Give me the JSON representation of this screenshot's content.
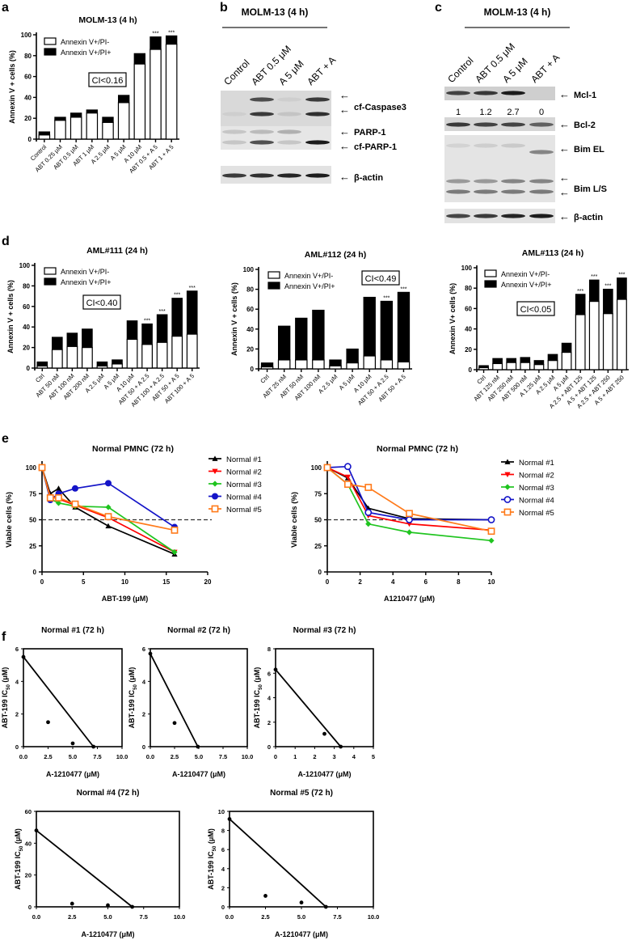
{
  "panel_letters": {
    "a": "a",
    "b": "b",
    "c": "c",
    "d": "d",
    "e": "e",
    "f": "f"
  },
  "blots": {
    "b": {
      "title": "MOLM-13 (4 h)",
      "lanes": [
        "Control",
        "ABT 0.5 μM",
        "A 5 μM",
        "ABT + A"
      ],
      "bands": [
        "cf-Caspase3",
        "PARP-1",
        "cf-PARP-1",
        "β-actin"
      ],
      "arrow": "←"
    },
    "c": {
      "title": "MOLM-13 (4 h)",
      "lanes": [
        "Control",
        "ABT 0.5 μM",
        "A 5 μM",
        "ABT + A"
      ],
      "mcl1_quant": [
        "1",
        "1.2",
        "2.7",
        "0"
      ],
      "bands": [
        "Mcl-1",
        "Bcl-2",
        "Bim EL",
        "Bim L/S",
        "β-actin"
      ],
      "arrow": "←"
    }
  },
  "chart_data": [
    {
      "id": "a",
      "type": "bar",
      "stacked": true,
      "title": "MOLM-13 (4 h)",
      "ylabel": "Annexin V + cells (%)",
      "xlabel": "",
      "annotation": "CI<0.16",
      "legend_position": "top-left",
      "categories": [
        "Control",
        "ABT 0.25 μM",
        "ABT 0.5 μM",
        "ABT 1 μM",
        "A 2.5 μM",
        "A 5 μM",
        "A 10 μM",
        "ABT 0.5 + A 5",
        "ABT 1 + A 5"
      ],
      "series": [
        {
          "name": "Annexin V+/PI-",
          "values": [
            4,
            18,
            21,
            25,
            16,
            35,
            72,
            86,
            91
          ]
        },
        {
          "name": "Annexin V+/PI+",
          "values": [
            3,
            3,
            4,
            3,
            5,
            7,
            10,
            12,
            8
          ]
        }
      ],
      "significance": [
        "",
        "",
        "",
        "",
        "",
        "",
        "",
        "***",
        "***"
      ],
      "ylim": [
        0,
        100
      ],
      "yticks": [
        0,
        20,
        40,
        60,
        80,
        100
      ]
    },
    {
      "id": "d1",
      "type": "bar",
      "stacked": true,
      "title": "AML#111 (24 h)",
      "ylabel": "Annexin V + cells (%)",
      "xlabel": "",
      "annotation": "CI<0.40",
      "legend_position": "top-left",
      "categories": [
        "Ctrl",
        "ABT 50 nM",
        "ABT 100 nM",
        "ABT 200 nM",
        "A 2.5 μM",
        "A 5 μM",
        "A 10 μM",
        "ABT 50 + A 2.5",
        "ABT 100 + A 2.5",
        "ABT 50 + A 5",
        "ABT 100 + A 5"
      ],
      "series": [
        {
          "name": "Annexin V+/PI-",
          "values": [
            2,
            18,
            21,
            20,
            2,
            4,
            28,
            23,
            25,
            31,
            33
          ]
        },
        {
          "name": "Annexin V+/PI+",
          "values": [
            4,
            12,
            13,
            18,
            4,
            4,
            18,
            20,
            27,
            37,
            42
          ]
        }
      ],
      "significance": [
        "",
        "",
        "",
        "",
        "",
        "",
        "",
        "***",
        "***",
        "***",
        "***"
      ],
      "ylim": [
        0,
        100
      ],
      "yticks": [
        0,
        20,
        40,
        60,
        80,
        100
      ]
    },
    {
      "id": "d2",
      "type": "bar",
      "stacked": true,
      "title": "AML#112 (24 h)",
      "ylabel": "Annexin V + cells (%)",
      "xlabel": "",
      "annotation": "CI<0.49",
      "legend_position": "top-left",
      "categories": [
        "Ctrl",
        "ABT 25 nM",
        "ABT 50 nM",
        "ABT 100 nM",
        "A 2.5 μM",
        "A 5 μM",
        "A 10 μM",
        "ABT 50 + A 2.5",
        "ABT 50 + A 5"
      ],
      "series": [
        {
          "name": "Annexin V+/PI-",
          "values": [
            2,
            9,
            9,
            9,
            3,
            6,
            13,
            9,
            7
          ]
        },
        {
          "name": "Annexin V+/PI+",
          "values": [
            4,
            34,
            42,
            50,
            6,
            14,
            59,
            59,
            70
          ]
        }
      ],
      "significance": [
        "",
        "",
        "",
        "",
        "",
        "",
        "",
        "***",
        "***"
      ],
      "ylim": [
        0,
        100
      ],
      "yticks": [
        0,
        20,
        40,
        60,
        80,
        100
      ]
    },
    {
      "id": "d3",
      "type": "bar",
      "stacked": true,
      "title": "AML#113  (24 h)",
      "ylabel": "Annexin V+ cells (%)",
      "xlabel": "",
      "annotation": "CI<0.05",
      "legend_position": "top-left",
      "categories": [
        "Ctrl",
        "ABT 125 nM",
        "ABT 250 nM",
        "ABT 500 nM",
        "A 1.25 μM",
        "A 2.5 μM",
        "A 5 μM",
        "A 2.5 + ABT 125",
        "A 5 + ABT 125",
        "A 2.5 + ABT 250",
        "A 5 + ABT 250"
      ],
      "series": [
        {
          "name": "Annexin V+/PI-",
          "values": [
            2,
            6,
            7,
            7,
            5,
            9,
            17,
            54,
            67,
            55,
            69
          ]
        },
        {
          "name": "Annexin V+/PI+",
          "values": [
            2,
            5,
            4,
            5,
            4,
            6,
            9,
            20,
            21,
            24,
            21
          ]
        }
      ],
      "significance": [
        "",
        "",
        "",
        "",
        "",
        "",
        "",
        "***",
        "***",
        "***",
        "***"
      ],
      "ylim": [
        0,
        100
      ],
      "yticks": [
        0,
        20,
        40,
        60,
        80,
        100
      ]
    },
    {
      "id": "e1",
      "type": "line",
      "title": "Normal PMNC (72 h)",
      "xlabel": "ABT-199 (μM)",
      "ylabel": "Viable cells (%)",
      "legend_position": "right",
      "reference_line": 50,
      "x": [
        0,
        1,
        2,
        4,
        8,
        16
      ],
      "series": [
        {
          "name": "Normal #1",
          "color": "#000000",
          "marker": "triangle-up",
          "values": [
            100,
            75,
            80,
            62,
            44,
            17
          ]
        },
        {
          "name": "Normal #2",
          "color": "#ff0000",
          "marker": "triangle-down",
          "values": [
            100,
            72,
            70,
            64,
            52,
            19
          ]
        },
        {
          "name": "Normal #3",
          "color": "#1fc41f",
          "marker": "diamond",
          "values": [
            100,
            70,
            66,
            63,
            62,
            19
          ]
        },
        {
          "name": "Normal #4",
          "color": "#1414c8",
          "marker": "circle-filled",
          "values": [
            100,
            69,
            75,
            80,
            85,
            43
          ]
        },
        {
          "name": "Normal #5",
          "color": "#ff7a1a",
          "marker": "square-open",
          "values": [
            100,
            71,
            71,
            65,
            53,
            40
          ]
        }
      ],
      "xlim": [
        0,
        20
      ],
      "xticks": [
        0,
        5,
        10,
        15,
        20
      ],
      "ylim": [
        0,
        100
      ],
      "yticks": [
        0,
        25,
        50,
        75,
        100
      ]
    },
    {
      "id": "e2",
      "type": "line",
      "title": "Normal PMNC (72 h)",
      "xlabel": "A1210477 (μM)",
      "ylabel": "Viable cells (%)",
      "legend_position": "right",
      "reference_line": 50,
      "x": [
        0,
        1.25,
        2.5,
        5,
        10
      ],
      "series": [
        {
          "name": "Normal #1",
          "color": "#000000",
          "marker": "triangle-up",
          "values": [
            100,
            90,
            61,
            51,
            50
          ]
        },
        {
          "name": "Normal #2",
          "color": "#ff0000",
          "marker": "triangle-down",
          "values": [
            100,
            91,
            54,
            46,
            40
          ]
        },
        {
          "name": "Normal #3",
          "color": "#1fc41f",
          "marker": "diamond",
          "values": [
            100,
            84,
            46,
            38,
            30
          ]
        },
        {
          "name": "Normal #4",
          "color": "#1414c8",
          "marker": "circle-open",
          "values": [
            100,
            101,
            57,
            50,
            50
          ]
        },
        {
          "name": "Normal #5",
          "color": "#ff7a1a",
          "marker": "square-open",
          "values": [
            100,
            84,
            81,
            56,
            39
          ]
        }
      ],
      "xlim": [
        0,
        10
      ],
      "xticks": [
        0,
        2,
        4,
        6,
        8,
        10
      ],
      "ylim": [
        0,
        100
      ],
      "yticks": [
        0,
        25,
        50,
        75,
        100
      ]
    },
    {
      "id": "f1",
      "type": "scatter",
      "title": "Normal #1 (72 h)",
      "xlabel": "A-1210477 (μM)",
      "ylabel_main": "ABT-199 IC",
      "ylabel_sub": "50",
      "ylabel_unit": " (μM)",
      "points": [
        [
          0,
          5.5
        ],
        [
          2.5,
          1.5
        ],
        [
          5,
          0.2
        ],
        [
          7.1,
          0
        ]
      ],
      "isobole": [
        [
          0,
          5.5
        ],
        [
          7.1,
          0
        ]
      ],
      "xlim": [
        0,
        10
      ],
      "xticks": [
        "0.0",
        "2.5",
        "5.0",
        "7.5",
        "10.0"
      ],
      "ylim": [
        0,
        6
      ],
      "yticks": [
        0,
        2,
        4,
        6
      ]
    },
    {
      "id": "f2",
      "type": "scatter",
      "title": "Normal #2 (72 h)",
      "xlabel": "A-1210477 (μM)",
      "ylabel_main": "ABT-199 IC",
      "ylabel_sub": "50",
      "ylabel_unit": " (μM)",
      "points": [
        [
          0,
          5.7
        ],
        [
          2.5,
          1.45
        ],
        [
          4.9,
          0
        ]
      ],
      "isobole": [
        [
          0,
          5.7
        ],
        [
          4.9,
          0
        ]
      ],
      "xlim": [
        0,
        10
      ],
      "xticks": [
        "0.0",
        "2.5",
        "5.0",
        "7.5",
        "10.0"
      ],
      "ylim": [
        0,
        6
      ],
      "yticks": [
        0,
        2,
        4,
        6
      ]
    },
    {
      "id": "f3",
      "type": "scatter",
      "title": "Normal #3 (72 h)",
      "xlabel": "A-1210477 (μM)",
      "ylabel_main": "ABT-199 IC",
      "ylabel_sub": "50",
      "ylabel_unit": " (μM)",
      "points": [
        [
          0,
          6.3
        ],
        [
          2.5,
          1.05
        ],
        [
          3.33,
          0
        ]
      ],
      "isobole": [
        [
          0,
          6.3
        ],
        [
          3.33,
          0
        ]
      ],
      "xlim": [
        0,
        5
      ],
      "xticks": [
        "0",
        "1",
        "2",
        "3",
        "4",
        "5"
      ],
      "ylim": [
        0,
        8
      ],
      "yticks": [
        0,
        2,
        4,
        6,
        8
      ]
    },
    {
      "id": "f4",
      "type": "scatter",
      "title": "Normal #4 (72 h)",
      "xlabel": "A-1210477 (μM)",
      "ylabel_main": "ABT-199 IC",
      "ylabel_sub": "50",
      "ylabel_unit": " (μM)",
      "points": [
        [
          0,
          48
        ],
        [
          2.5,
          2
        ],
        [
          5,
          1
        ],
        [
          6.7,
          0
        ]
      ],
      "isobole": [
        [
          0,
          48
        ],
        [
          6.7,
          0
        ]
      ],
      "xlim": [
        0,
        10
      ],
      "xticks": [
        "0.0",
        "2.5",
        "5.0",
        "7.5",
        "10.0"
      ],
      "ylim": [
        0,
        60
      ],
      "yticks": [
        0,
        20,
        40,
        60
      ]
    },
    {
      "id": "f5",
      "type": "scatter",
      "title": "Normal #5 (72 h)",
      "xlabel": "A-1210477 (μM)",
      "ylabel_main": "ABT-199 IC",
      "ylabel_sub": "50",
      "ylabel_unit": " (μM)",
      "points": [
        [
          0,
          9.2
        ],
        [
          2.5,
          1.15
        ],
        [
          5,
          0.45
        ],
        [
          6.7,
          0
        ]
      ],
      "isobole": [
        [
          0,
          9.2
        ],
        [
          6.7,
          0
        ]
      ],
      "xlim": [
        0,
        10
      ],
      "xticks": [
        "0.0",
        "2.5",
        "5.0",
        "7.5",
        "10.0"
      ],
      "ylim": [
        0,
        10
      ],
      "yticks": [
        0,
        2,
        4,
        6,
        8,
        10
      ]
    }
  ]
}
